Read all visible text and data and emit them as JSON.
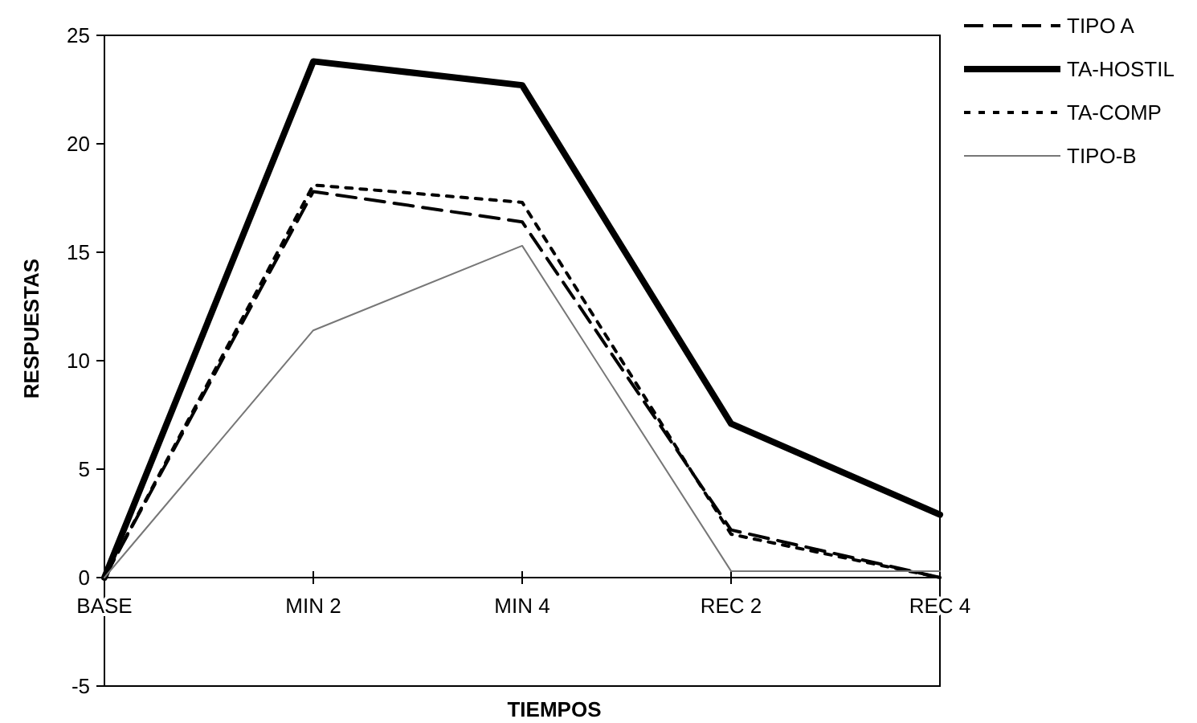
{
  "chart_data": {
    "type": "line",
    "xlabel": "TIEMPOS",
    "ylabel": "RESPUESTAS",
    "categories": [
      "BASE",
      "MIN 2",
      "MIN 4",
      "REC 2",
      "REC 4"
    ],
    "ylim": [
      -5,
      25
    ],
    "yticks": [
      -5,
      0,
      5,
      10,
      15,
      20,
      25
    ],
    "legend": "top right",
    "marker": "none",
    "grid": false,
    "series": [
      {
        "name": "TIPO A",
        "color": "#000000",
        "line_style": "dashed",
        "values": [
          0,
          17.8,
          16.4,
          2.2,
          0
        ]
      },
      {
        "name": "TA-HOSTIL",
        "color": "#000000",
        "line_style": "solid",
        "values": [
          0,
          23.8,
          22.7,
          7.1,
          2.9
        ]
      },
      {
        "name": "TA-COMP",
        "color": "#000000",
        "line_style": "dotted",
        "values": [
          0,
          18.1,
          17.3,
          2.0,
          0
        ]
      },
      {
        "name": "TIPO-B",
        "color": "#777777",
        "line_style": "solid",
        "values": [
          0,
          11.4,
          15.3,
          0.3,
          0.3
        ]
      }
    ]
  }
}
